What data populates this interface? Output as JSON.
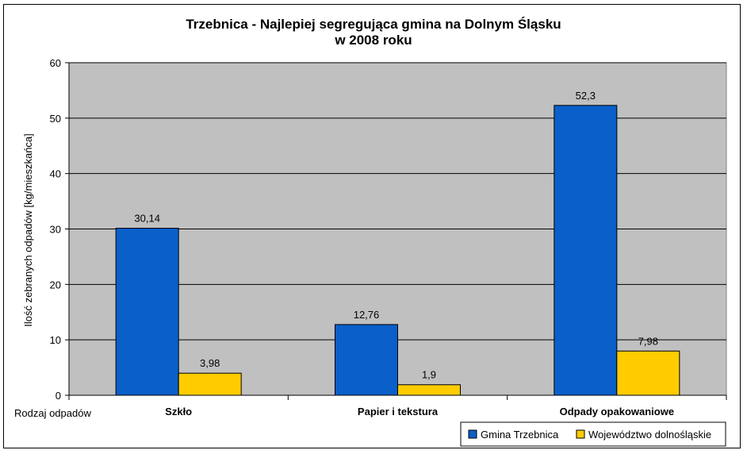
{
  "chart_data": {
    "type": "bar",
    "title": [
      "Trzebnica - Najlepiej segregująca gmina na Dolnym Śląsku",
      "w 2008 roku"
    ],
    "xlabel": "Rodzaj odpadów",
    "ylabel": "Ilość zebranych odpadów [kg/mieszkańca]",
    "categories": [
      "Szkło",
      "Papier i tekstura",
      "Odpady opakowaniowe"
    ],
    "series": [
      {
        "name": "Gmina Trzebnica",
        "values": [
          30.14,
          12.76,
          52.3
        ],
        "labels": [
          "30,14",
          "12,76",
          "52,3"
        ],
        "color": "#0a5fc9"
      },
      {
        "name": "Województwo dolnośląskie",
        "values": [
          3.98,
          1.9,
          7.98
        ],
        "labels": [
          "3,98",
          "1,9",
          "7,98"
        ],
        "color": "#ffcc00"
      }
    ],
    "ylim": [
      0,
      60
    ],
    "yticks": [
      0,
      10,
      20,
      30,
      40,
      50,
      60
    ],
    "grid": true,
    "plot_background": "#c0c0c0",
    "legend_position": "bottom-right"
  }
}
